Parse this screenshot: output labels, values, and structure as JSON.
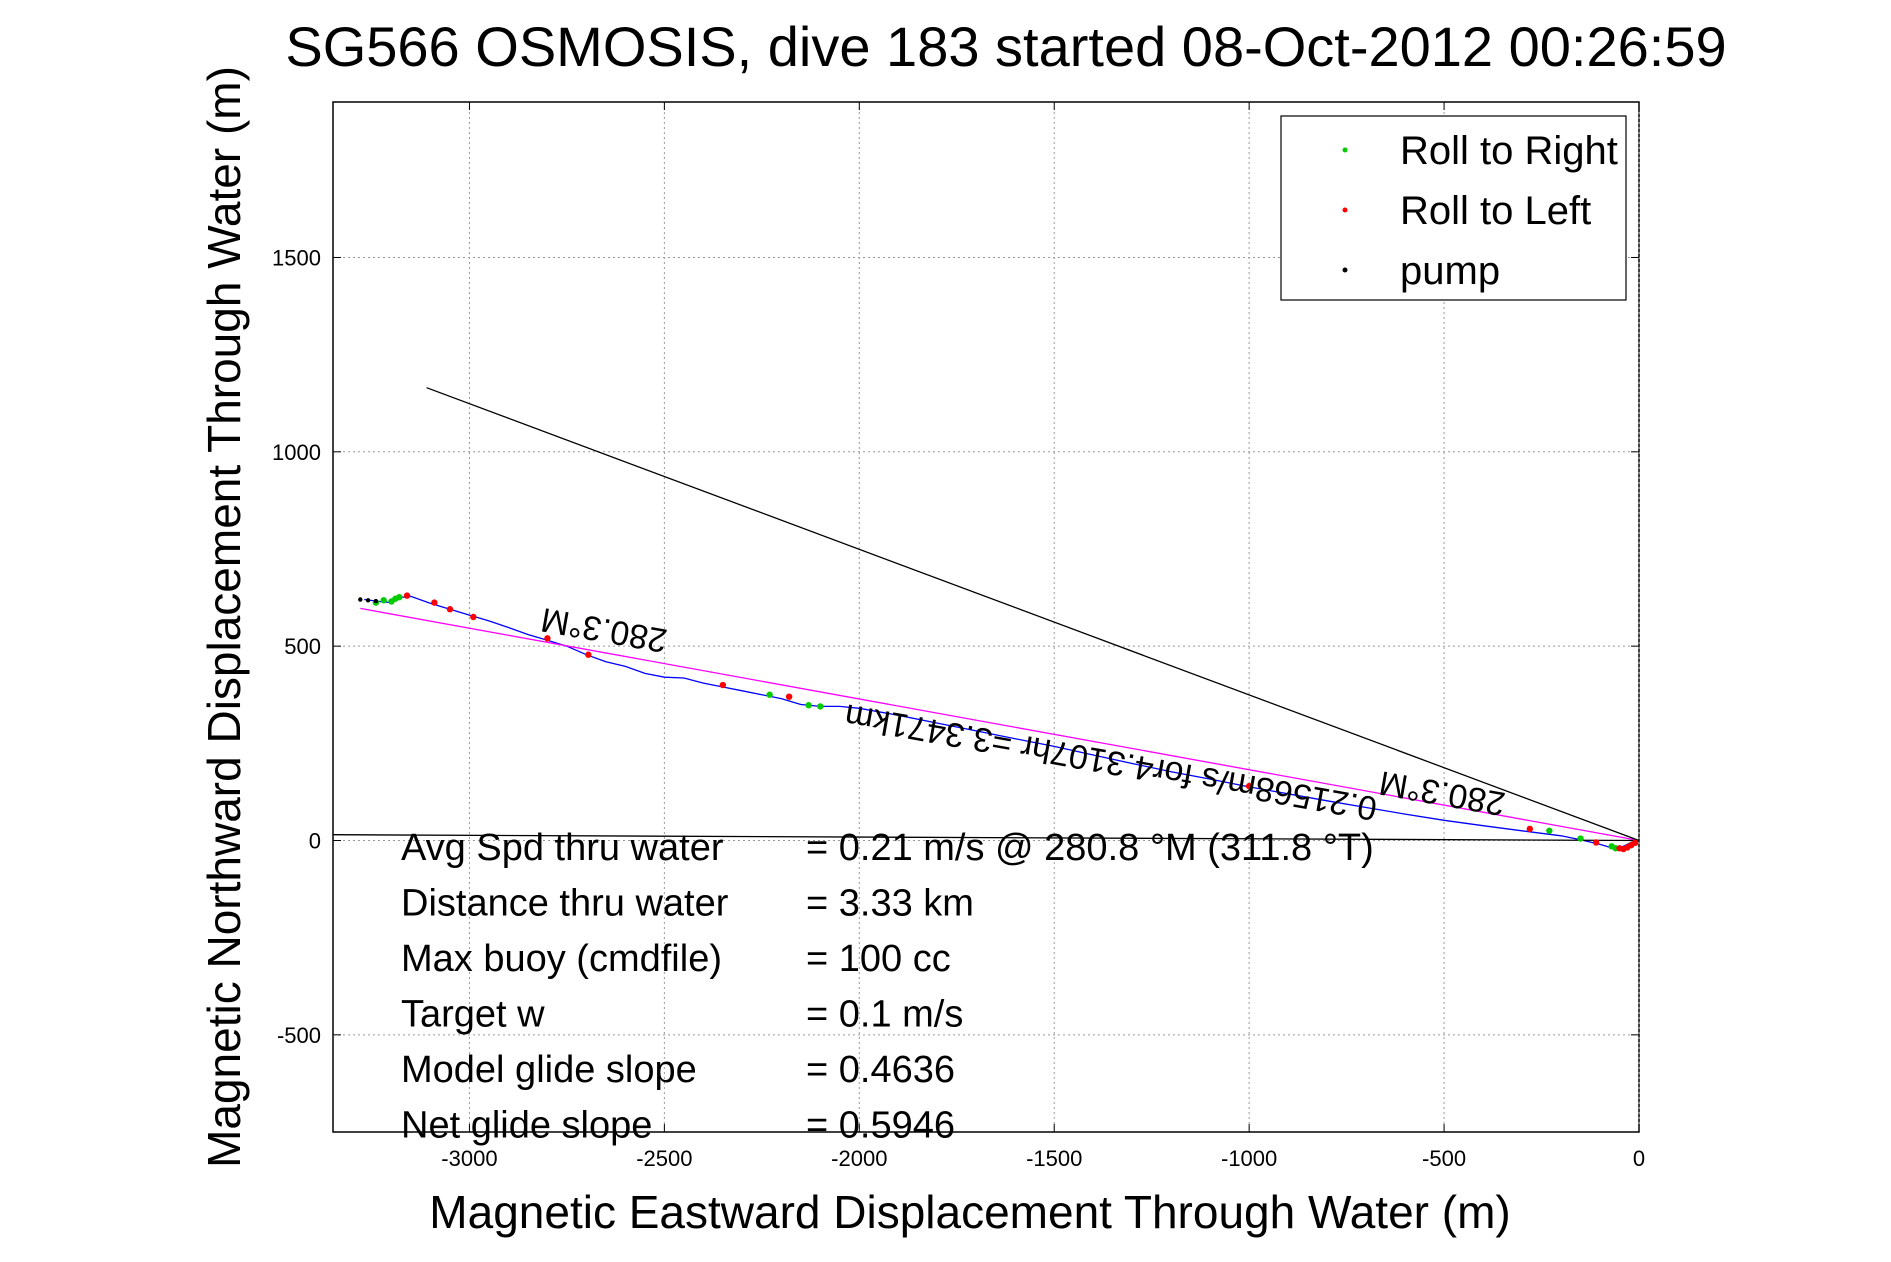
{
  "chart_data": {
    "type": "line",
    "title": "SG566 OSMOSIS, dive 183 started 08-Oct-2012 00:26:59",
    "xlabel": "Magnetic Eastward Displacement Through Water (m)",
    "ylabel": "Magnetic Northward Displacement Through Water (m)",
    "xlim": [
      -3350,
      0
    ],
    "ylim": [
      -750,
      1900
    ],
    "xticks": [
      -3000,
      -2500,
      -2000,
      -1500,
      -1000,
      -500,
      0
    ],
    "xtick_labels": [
      "-3000",
      "-2500",
      "-2000",
      "-1500",
      "-1000",
      "-500",
      "0"
    ],
    "yticks": [
      -500,
      0,
      500,
      1000,
      1500
    ],
    "ytick_labels": [
      "-500",
      "0",
      "500",
      "1000",
      "1500"
    ],
    "grid": true,
    "legend_position": "top-right",
    "legend": [
      {
        "label": "Roll to Right",
        "color": "#00cc00"
      },
      {
        "label": "Roll to Left",
        "color": "#ff0000"
      },
      {
        "label": "pump",
        "color": "#000000"
      }
    ],
    "series": [
      {
        "color": "#0000ff",
        "x": [
          -3270,
          -3230,
          -3200,
          -3180,
          -3150,
          -3100,
          -3050,
          -3000,
          -2950,
          -2900,
          -2850,
          -2800,
          -2750,
          -2700,
          -2650,
          -2600,
          -2550,
          -2500,
          -2450,
          -2400,
          -2350,
          -2300,
          -2250,
          -2200,
          -2150,
          -2100,
          -2050,
          -2000,
          -1900,
          -1800,
          -1700,
          -1600,
          -1500,
          -1400,
          -1300,
          -1200,
          -1100,
          -1000,
          -900,
          -800,
          -700,
          -600,
          -500,
          -400,
          -300,
          -200,
          -150,
          -100,
          -60,
          -40,
          -20,
          0
        ],
        "y": [
          620,
          615,
          612,
          625,
          628,
          610,
          595,
          580,
          565,
          548,
          530,
          515,
          500,
          478,
          460,
          448,
          430,
          420,
          418,
          405,
          395,
          385,
          375,
          365,
          350,
          345,
          345,
          340,
          322,
          302,
          282,
          262,
          242,
          220,
          198,
          177,
          158,
          138,
          120,
          102,
          85,
          68,
          52,
          38,
          25,
          12,
          2,
          -10,
          -22,
          -15,
          -5,
          0
        ]
      },
      {
        "color": "#ff00ff",
        "x": [
          -3280,
          0
        ],
        "y": [
          597,
          0
        ]
      },
      {
        "color": "#000000",
        "x": [
          -3110,
          0
        ],
        "y": [
          1165,
          0
        ]
      },
      {
        "color": "#000000",
        "x": [
          -3350,
          0
        ],
        "y": [
          15,
          0
        ]
      }
    ],
    "roll_right_points": {
      "color": "#00cc00",
      "x": [
        -3240,
        -3220,
        -3200,
        -3190,
        -3180,
        -2230,
        -2130,
        -2100,
        -230,
        -150,
        -70,
        -60,
        -20
      ],
      "y": [
        612,
        618,
        615,
        622,
        626,
        375,
        348,
        345,
        25,
        5,
        -15,
        -20,
        -12
      ]
    },
    "roll_left_points": {
      "color": "#ff0000",
      "x": [
        -3160,
        -3090,
        -3050,
        -2990,
        -2800,
        -2695,
        -2350,
        -2180,
        -1000,
        -280,
        -110,
        -50,
        -40,
        -30,
        -20,
        -10
      ],
      "y": [
        630,
        612,
        595,
        575,
        520,
        478,
        400,
        370,
        140,
        30,
        -5,
        -20,
        -22,
        -18,
        -12,
        -6
      ]
    },
    "pump_points": {
      "color": "#000000",
      "x": [
        -3280,
        -3260,
        -3240
      ],
      "y": [
        620,
        618,
        616
      ]
    },
    "annotations": [
      {
        "text": "280.3°M",
        "x": -2650,
        "y": 570,
        "rotate": 190
      },
      {
        "text": "0.21568m/s for4.3107hr =3.3471km",
        "x": -1350,
        "y": 230,
        "rotate": 190
      },
      {
        "text": "280.3°M",
        "x": -500,
        "y": 150,
        "rotate": 190
      }
    ],
    "stats": [
      {
        "label": "Avg Spd thru water",
        "value": "=  0.21 m/s @ 280.8 °M (311.8 °T)"
      },
      {
        "label": "Distance thru water",
        "value": "=  3.33 km"
      },
      {
        "label": "Max buoy (cmdfile)",
        "value": "= 100 cc"
      },
      {
        "label": "Target w",
        "value": "= 0.1 m/s"
      },
      {
        "label": "Model glide slope",
        "value": "= 0.4636"
      },
      {
        "label": "Net glide slope",
        "value": "= 0.5946"
      }
    ]
  }
}
